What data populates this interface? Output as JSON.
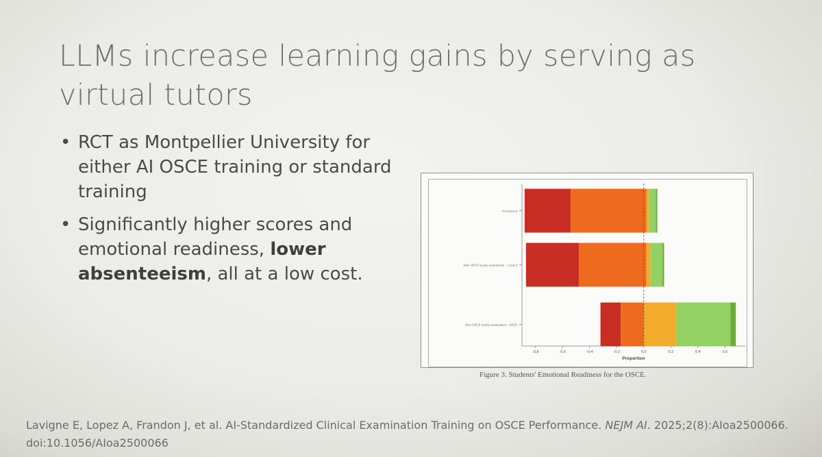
{
  "slide": {
    "title": "LLMs increase learning gains by serving as virtual tutors",
    "bullet_marker": "•",
    "bullets": [
      {
        "text": "RCT as Montpellier University for either AI OSCE training or standard training"
      },
      {
        "text_before": "Significantly higher scores and emotional readiness, ",
        "bold": "lower absenteeism",
        "text_after": ", all at a low cost."
      }
    ],
    "figure_caption": "Figure 3. Students' Emotional Readiness for the OSCE.",
    "citation": {
      "main": "Lavigne E, Lopez A, Frandon J, et al. AI-Standardized Clinical Examination Training on OSCE Performance. ",
      "journal": "NEJM AI",
      "rest": ". 2025;2(8):AIoa2500066. doi:10.1056/AIoa2500066"
    }
  },
  "chart_data": {
    "type": "bar",
    "orientation": "horizontal-diverging-stacked",
    "categories": [
      "At inclusion",
      "After OSCE faculty examination – Control",
      "After OSCE faculty examination – ASCE"
    ],
    "xlabel": "Proportion",
    "xlim": [
      -0.9,
      0.75
    ],
    "xticks": [
      -0.8,
      -0.6,
      -0.4,
      -0.2,
      0.0,
      0.2,
      0.4,
      0.6
    ],
    "xtick_labels": [
      "-0.8",
      "-0.6",
      "-0.4",
      "-0.2",
      "0.0",
      "0.2",
      "0.4",
      "0.6"
    ],
    "zero_line": "dashed",
    "colors": [
      "#c72d22",
      "#ee6a1f",
      "#f3ac2d",
      "#93d165",
      "#6aad35"
    ],
    "bars": [
      {
        "segments": [
          [
            -0.88,
            -0.54
          ],
          [
            -0.54,
            0.02
          ],
          [
            0.02,
            0.04
          ],
          [
            0.04,
            0.09
          ],
          [
            0.09,
            0.1
          ]
        ]
      },
      {
        "segments": [
          [
            -0.87,
            -0.48
          ],
          [
            -0.48,
            0.02
          ],
          [
            0.02,
            0.05
          ],
          [
            0.05,
            0.14
          ],
          [
            0.14,
            0.15
          ]
        ]
      },
      {
        "segments": [
          [
            -0.32,
            -0.17
          ],
          [
            -0.17,
            0.0
          ],
          [
            0.0,
            0.24
          ],
          [
            0.24,
            0.64
          ],
          [
            0.64,
            0.68
          ]
        ]
      }
    ]
  }
}
